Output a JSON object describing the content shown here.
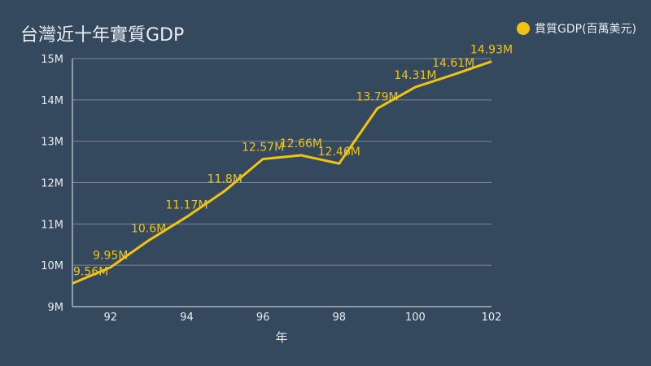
{
  "chart_data": {
    "type": "line",
    "title": "台灣近十年實質GDP",
    "xlabel": "年",
    "ylabel": "",
    "x": [
      91,
      92,
      93,
      94,
      95,
      96,
      97,
      98,
      99,
      100,
      101,
      102
    ],
    "series": [
      {
        "name": "貫質GDP(百萬美元)",
        "values": [
          9.56,
          9.95,
          10.6,
          11.17,
          11.8,
          12.57,
          12.66,
          12.46,
          13.79,
          14.31,
          14.61,
          14.93
        ],
        "labels": [
          "9.56M",
          "9.95M",
          "10.6M",
          "11.17M",
          "11.8M",
          "12.57M",
          "12.66M",
          "12.46M",
          "13.79M",
          "14.31M",
          "14.61M",
          "14.93M"
        ],
        "color": "#f1c40f"
      }
    ],
    "xticks": [
      92,
      94,
      96,
      98,
      100,
      102
    ],
    "yticks": [
      "9M",
      "10M",
      "11M",
      "12M",
      "13M",
      "14M",
      "15M"
    ],
    "ylim": [
      9,
      15
    ],
    "xlim": [
      91,
      102
    ],
    "grid": true,
    "legend": "top-right"
  }
}
